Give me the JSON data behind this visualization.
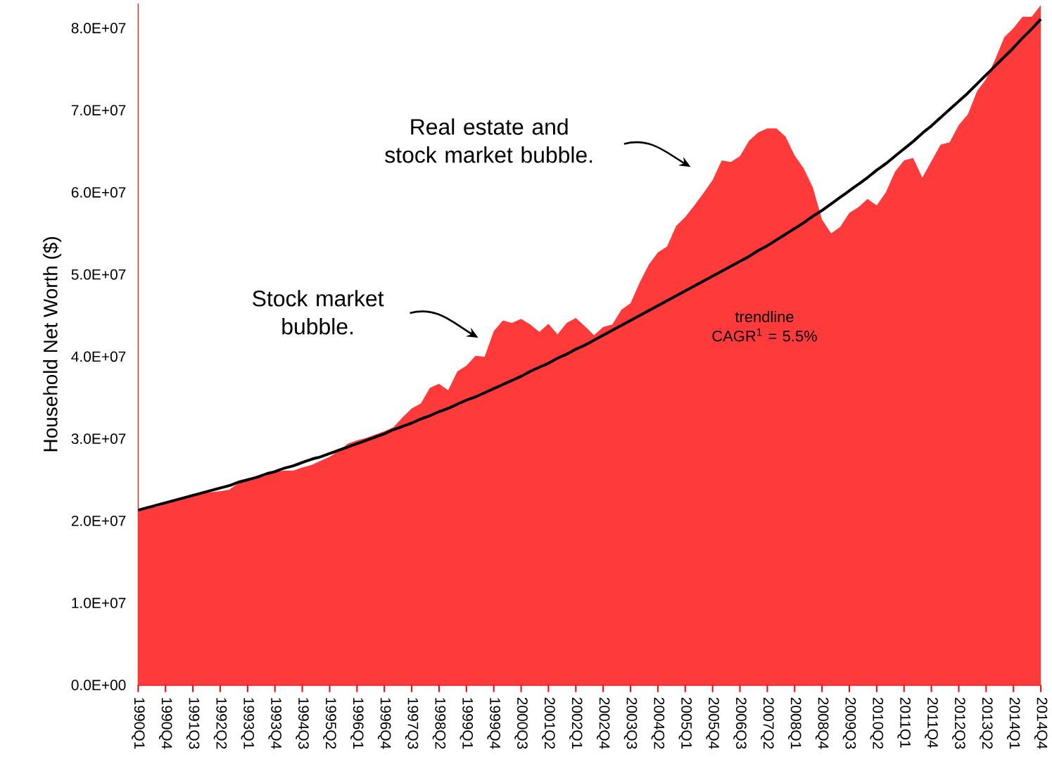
{
  "chart_data": {
    "type": "area",
    "ylabel": "Household Net Worth ($)",
    "categories": [
      "1990Q1",
      null,
      null,
      "1990Q4",
      null,
      null,
      "1991Q3",
      null,
      null,
      "1992Q2",
      null,
      null,
      "1993Q1",
      null,
      null,
      "1993Q4",
      null,
      null,
      "1994Q3",
      null,
      null,
      "1995Q2",
      null,
      null,
      "1996Q1",
      null,
      null,
      "1996Q4",
      null,
      null,
      "1997Q3",
      null,
      null,
      "1998Q2",
      null,
      null,
      "1999Q1",
      null,
      null,
      "1999Q4",
      null,
      null,
      "2000Q3",
      null,
      null,
      "2001Q2",
      null,
      null,
      "2002Q1",
      null,
      null,
      "2002Q4",
      null,
      null,
      "2003Q3",
      null,
      null,
      "2004Q2",
      null,
      null,
      "2005Q1",
      null,
      null,
      "2005Q4",
      null,
      null,
      "2006Q3",
      null,
      null,
      "2007Q2",
      null,
      null,
      "2008Q1",
      null,
      null,
      "2008Q4",
      null,
      null,
      "2009Q3",
      null,
      null,
      "2010Q2",
      null,
      null,
      "2011Q1",
      null,
      null,
      "2011Q4",
      null,
      null,
      "2012Q3",
      null,
      null,
      "2013Q2",
      null,
      null,
      "2014Q1",
      null,
      null,
      "2014Q4"
    ],
    "series": [
      {
        "color": "#ff3a3a",
        "values": [
          21300000.0,
          21800000.0,
          21700000.0,
          22100000.0,
          22500000.0,
          22800000.0,
          23100000.0,
          23400000.0,
          23500000.0,
          23600000.0,
          23800000.0,
          24600000.0,
          24900000.0,
          25200000.0,
          25500000.0,
          26000000.0,
          26100000.0,
          26100000.0,
          26500000.0,
          26800000.0,
          27300000.0,
          27800000.0,
          28500000.0,
          29400000.0,
          29800000.0,
          30100000.0,
          30500000.0,
          30900000.0,
          31400000.0,
          32600000.0,
          33700000.0,
          34300000.0,
          36200000.0,
          36700000.0,
          35900000.0,
          38200000.0,
          38900000.0,
          40100000.0,
          40000000.0,
          43100000.0,
          44400000.0,
          44100000.0,
          44600000.0,
          43900000.0,
          43000000.0,
          44000000.0,
          42700000.0,
          44100000.0,
          44700000.0,
          43700000.0,
          42600000.0,
          43600000.0,
          43900000.0,
          45700000.0,
          46500000.0,
          49000000.0,
          51200000.0,
          52700000.0,
          53400000.0,
          55900000.0,
          57000000.0,
          58400000.0,
          59900000.0,
          61500000.0,
          63900000.0,
          63700000.0,
          64400000.0,
          66300000.0,
          67300000.0,
          67800000.0,
          67800000.0,
          66800000.0,
          64500000.0,
          62900000.0,
          60600000.0,
          56700000.0,
          55000000.0,
          55800000.0,
          57500000.0,
          58200000.0,
          59200000.0,
          58400000.0,
          60000000.0,
          62500000.0,
          63900000.0,
          64200000.0,
          61800000.0,
          63800000.0,
          65800000.0,
          66100000.0,
          68200000.0,
          69500000.0,
          72300000.0,
          73800000.0,
          76200000.0,
          78900000.0,
          80000000.0,
          81400000.0,
          81400000.0,
          82800000.0
        ]
      },
      {
        "type": "line",
        "color": "#000000",
        "values": [
          21300000.0,
          21600000.0,
          21900000.0,
          22200000.0,
          22500000.0,
          22800000.0,
          23100000.0,
          23400000.0,
          23700000.0,
          24000000.0,
          24300000.0,
          24700000.0,
          25000000.0,
          25300000.0,
          25700000.0,
          26000000.0,
          26400000.0,
          26700000.0,
          27100000.0,
          27500000.0,
          27800000.0,
          28200000.0,
          28600000.0,
          29000000.0,
          29400000.0,
          29800000.0,
          30200000.0,
          30600000.0,
          31100000.0,
          31500000.0,
          31900000.0,
          32400000.0,
          32800000.0,
          33300000.0,
          33700000.0,
          34200000.0,
          34700000.0,
          35100000.0,
          35600000.0,
          36100000.0,
          36600000.0,
          37100000.0,
          37600000.0,
          38200000.0,
          38700000.0,
          39200000.0,
          39800000.0,
          40300000.0,
          40900000.0,
          41400000.0,
          42000000.0,
          42600000.0,
          43200000.0,
          43800000.0,
          44400000.0,
          45000000.0,
          45600000.0,
          46200000.0,
          46800000.0,
          47400000.0,
          48000000.0,
          48600000.0,
          49200000.0,
          49800000.0,
          50400000.0,
          51000000.0,
          51600000.0,
          52200000.0,
          52900000.0,
          53500000.0,
          54200000.0,
          54900000.0,
          55600000.0,
          56300000.0,
          57100000.0,
          57800000.0,
          58600000.0,
          59400000.0,
          60200000.0,
          61000000.0,
          61800000.0,
          62700000.0,
          63500000.0,
          64400000.0,
          65300000.0,
          66200000.0,
          67200000.0,
          68100000.0,
          69100000.0,
          70100000.0,
          71100000.0,
          72100000.0,
          73200000.0,
          74300000.0,
          75400000.0,
          76500000.0,
          77600000.0,
          78800000.0,
          79900000.0,
          81100000.0
        ]
      }
    ],
    "ylim": [
      0,
      83000000.0
    ],
    "yticks": [
      {
        "value": 0,
        "label": "0.0E+00"
      },
      {
        "value": 10000000.0,
        "label": "1.0E+07"
      },
      {
        "value": 20000000.0,
        "label": "2.0E+07"
      },
      {
        "value": 30000000.0,
        "label": "3.0E+07"
      },
      {
        "value": 40000000.0,
        "label": "4.0E+07"
      },
      {
        "value": 50000000.0,
        "label": "5.0E+07"
      },
      {
        "value": 60000000.0,
        "label": "6.0E+07"
      },
      {
        "value": 70000000.0,
        "label": "7.0E+07"
      },
      {
        "value": 80000000.0,
        "label": "8.0E+07"
      }
    ],
    "annotations": [
      "Stock market bubble.",
      "Real estate and stock market bubble.",
      "trendline CAGR$^{1}$ = 5.5%"
    ]
  }
}
